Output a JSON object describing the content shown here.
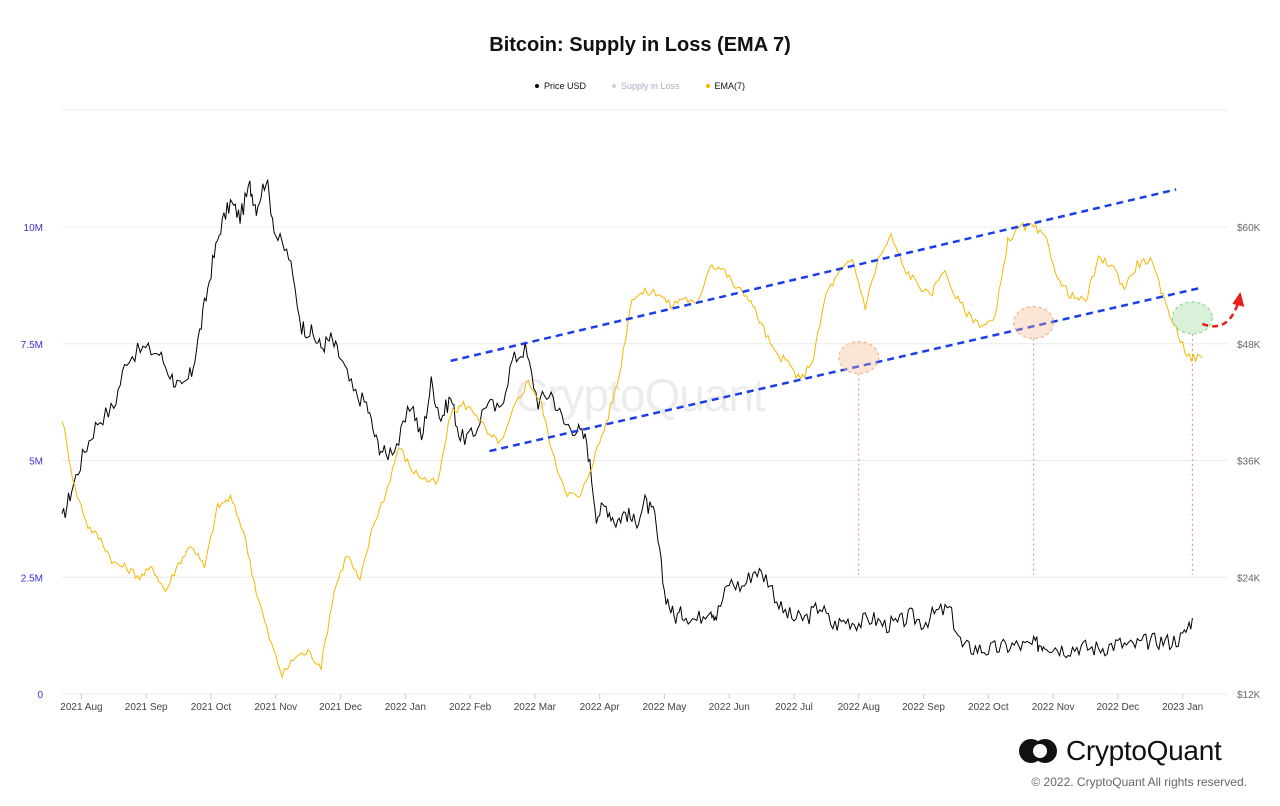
{
  "chart_data": {
    "type": "line",
    "title": "Bitcoin: Supply in Loss (EMA 7)",
    "legend": [
      {
        "name": "Price USD",
        "color": "#000000"
      },
      {
        "name": "Supply in Loss",
        "color": "#c9cde6"
      },
      {
        "name": "EMA(7)",
        "color": "#f5b800"
      }
    ],
    "legend_placement": "top-center",
    "grid": true,
    "x_ticks": [
      "2021 Aug",
      "2021 Sep",
      "2021 Oct",
      "2021 Nov",
      "2021 Dec",
      "2022 Jan",
      "2022 Feb",
      "2022 Mar",
      "2022 Apr",
      "2022 May",
      "2022 Jun",
      "2022 Jul",
      "2022 Aug",
      "2022 Sep",
      "2022 Oct",
      "2022 Nov",
      "2022 Dec",
      "2023 Jan"
    ],
    "y_left": {
      "ticks": [
        "0",
        "2.5M",
        "5M",
        "7.5M",
        "10M"
      ],
      "range": [
        0,
        12500000
      ],
      "color": "#3a2fd1"
    },
    "y_right": {
      "ticks": [
        "$12K",
        "$24K",
        "$36K",
        "$48K",
        "$60K"
      ],
      "range": [
        12000,
        72000
      ]
    },
    "x_range_months": [
      0,
      18
    ],
    "series": [
      {
        "name": "Price USD",
        "axis": "right",
        "color": "#000000",
        "x": [
          0,
          0.15,
          0.35,
          0.55,
          0.8,
          1.0,
          1.25,
          1.5,
          1.7,
          1.85,
          2.0,
          2.15,
          2.3,
          2.45,
          2.6,
          2.75,
          2.9,
          3.0,
          3.15,
          3.3,
          3.5,
          3.7,
          3.85,
          4.0,
          4.15,
          4.3,
          4.5,
          4.7,
          4.85,
          5.0,
          5.2,
          5.4,
          5.55,
          5.7,
          5.85,
          6.0,
          6.15,
          6.35,
          6.55,
          6.75,
          6.95,
          7.15,
          7.35,
          7.55,
          7.75,
          7.95,
          8.1,
          8.25,
          8.4,
          8.55,
          8.7,
          8.85,
          9.0,
          9.15,
          9.3,
          9.45,
          9.6,
          9.8,
          10.0,
          10.1,
          10.3,
          10.5,
          10.7,
          10.9,
          11.1,
          11.3,
          11.5,
          11.7,
          11.9,
          12.1,
          12.3,
          12.5,
          12.7,
          12.9,
          13.1,
          13.3,
          13.5,
          13.7,
          13.9,
          14.1,
          14.3,
          14.5,
          14.7,
          14.9,
          15.05,
          15.15,
          15.3,
          15.5,
          15.7,
          15.9,
          16.1,
          16.3,
          16.5,
          16.7,
          16.9,
          17.1,
          17.3,
          17.45
        ],
        "values": [
          29800,
          33000,
          37000,
          40000,
          41500,
          46500,
          47500,
          47000,
          44500,
          43200,
          45000,
          50000,
          55500,
          60000,
          62500,
          61000,
          64200,
          62000,
          65000,
          59200,
          57000,
          49800,
          49100,
          47600,
          48500,
          46500,
          43000,
          41800,
          38000,
          36500,
          38000,
          42000,
          38000,
          44000,
          40300,
          42500,
          38300,
          38500,
          42000,
          41000,
          46200,
          47500,
          42000,
          43000,
          39800,
          39200,
          38000,
          30400,
          31300,
          29700,
          30700,
          29500,
          31700,
          30200,
          22500,
          19900,
          20300,
          19600,
          21000,
          20000,
          23500,
          23000,
          24800,
          23800,
          20700,
          19700,
          19800,
          21100,
          19000,
          19600,
          19300,
          19800,
          19100,
          19200,
          20000,
          19300,
          20400,
          20700,
          16800,
          16700,
          16500,
          16800,
          17000,
          16900,
          17100,
          17200,
          16900,
          16600,
          16900,
          16700,
          16800,
          17200,
          16900,
          17300,
          17500,
          17400,
          17800,
          19800
        ],
        "title": "",
        "xlabel": "",
        "ylabel": ""
      },
      {
        "name": "EMA(7)",
        "axis": "left",
        "color": "#f5b800",
        "x": [
          0,
          0.2,
          0.4,
          0.6,
          0.8,
          1.0,
          1.2,
          1.4,
          1.6,
          1.8,
          2.0,
          2.2,
          2.4,
          2.6,
          2.8,
          3.0,
          3.2,
          3.4,
          3.6,
          3.8,
          4.0,
          4.2,
          4.4,
          4.6,
          4.8,
          5.0,
          5.2,
          5.4,
          5.6,
          5.8,
          6.0,
          6.2,
          6.4,
          6.6,
          6.8,
          7.0,
          7.2,
          7.4,
          7.6,
          7.8,
          8.0,
          8.2,
          8.4,
          8.6,
          8.8,
          9.0,
          9.2,
          9.4,
          9.6,
          9.8,
          10.0,
          10.2,
          10.4,
          10.6,
          10.8,
          11.0,
          11.2,
          11.4,
          11.6,
          11.8,
          12.0,
          12.2,
          12.4,
          12.6,
          12.8,
          13.0,
          13.2,
          13.4,
          13.6,
          13.8,
          14.0,
          14.2,
          14.4,
          14.6,
          14.8,
          15.0,
          15.2,
          15.4,
          15.6,
          15.8,
          16.0,
          16.2,
          16.4,
          16.6,
          16.8,
          17.0,
          17.2,
          17.4,
          17.6
        ],
        "values": [
          5900000,
          4400000,
          3600000,
          3300000,
          2800000,
          2700000,
          2500000,
          2700000,
          2200000,
          2800000,
          3200000,
          2700000,
          4000000,
          4200000,
          3500000,
          2200000,
          1200000,
          400000,
          800000,
          900000,
          600000,
          2200000,
          3000000,
          2400000,
          3600000,
          4300000,
          5300000,
          4800000,
          4600000,
          4500000,
          6000000,
          6200000,
          6000000,
          5500000,
          5400000,
          6200000,
          6700000,
          6200000,
          5000000,
          4300000,
          4200000,
          5000000,
          5800000,
          6800000,
          8500000,
          8600000,
          8600000,
          8300000,
          8500000,
          8300000,
          9200000,
          9100000,
          8700000,
          8500000,
          7900000,
          7300000,
          7100000,
          6700000,
          7200000,
          8600000,
          9000000,
          9300000,
          8300000,
          9300000,
          9800000,
          9100000,
          8800000,
          8500000,
          9100000,
          8500000,
          8100000,
          7900000,
          8000000,
          9700000,
          10000000,
          10000000,
          9700000,
          8800000,
          8500000,
          8400000,
          9300000,
          9200000,
          8700000,
          9200000,
          9300000,
          8500000,
          7800000,
          7200000,
          7200000
        ],
        "title": "",
        "xlabel": "",
        "ylabel": ""
      }
    ],
    "annotations": {
      "upper_trendline": {
        "x": [
          6.0,
          17.2
        ],
        "y_left": [
          7130000,
          10800000
        ],
        "color": "#1a3fe8"
      },
      "lower_trendline": {
        "x": [
          6.6,
          17.6
        ],
        "y_left": [
          5200000,
          8700000
        ],
        "color": "#1a3fe8"
      },
      "highlights": [
        {
          "x": 12.3,
          "y_left": 7200000,
          "color": "#f4b58c",
          "drop_line": true
        },
        {
          "x": 15.0,
          "y_left": 7950000,
          "color": "#f4b58c",
          "drop_line": true
        },
        {
          "x": 17.45,
          "y_left": 8050000,
          "color": "#8fd88f",
          "drop_line": true
        }
      ],
      "forecast_arrow_color": "#e8201a"
    }
  },
  "watermark": "CryptoQuant",
  "brand": {
    "name": "CryptoQuant",
    "copyright": "© 2022. CryptoQuant All rights reserved."
  }
}
